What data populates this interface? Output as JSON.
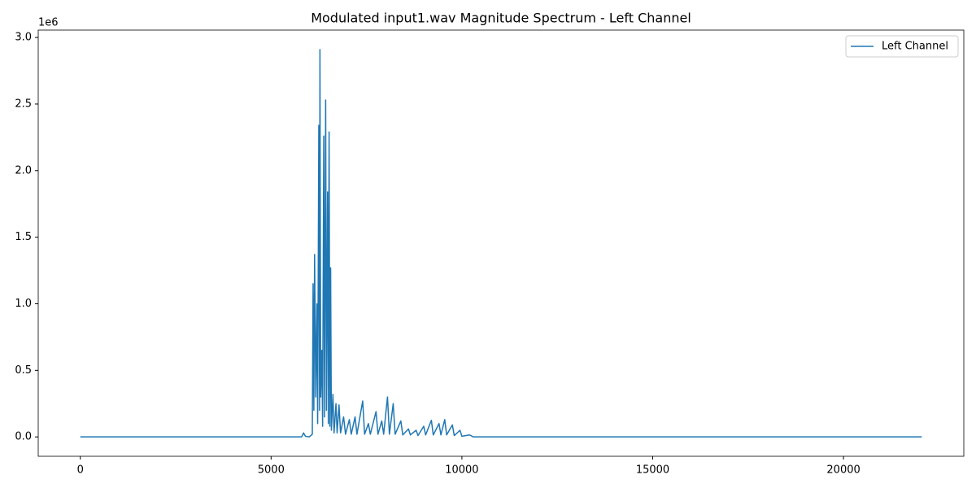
{
  "chart_data": {
    "type": "line",
    "title": "Modulated input1.wav Magnitude Spectrum - Left Channel",
    "y_offset_label": "1e6",
    "x": [
      0,
      5800,
      5850,
      5900,
      6000,
      6080,
      6100,
      6120,
      6140,
      6170,
      6200,
      6220,
      6250,
      6270,
      6280,
      6300,
      6330,
      6350,
      6380,
      6400,
      6430,
      6450,
      6480,
      6500,
      6520,
      6540,
      6560,
      6580,
      6620,
      6650,
      6700,
      6730,
      6780,
      6820,
      6900,
      6950,
      7050,
      7100,
      7200,
      7250,
      7400,
      7450,
      7550,
      7600,
      7750,
      7800,
      7900,
      7950,
      8050,
      8100,
      8200,
      8250,
      8400,
      8450,
      8600,
      8650,
      8800,
      8850,
      9000,
      9050,
      9200,
      9250,
      9400,
      9450,
      9550,
      9600,
      9750,
      9800,
      9950,
      10000,
      10200,
      10300,
      22050
    ],
    "series": [
      {
        "name": "Left Channel",
        "color": "#1f77b4",
        "values": [
          0,
          0,
          30000,
          5000,
          0,
          20000,
          1150000,
          200000,
          1370000,
          300000,
          1000000,
          100000,
          2340000,
          200000,
          2910000,
          300000,
          650000,
          80000,
          2260000,
          150000,
          2530000,
          200000,
          1840000,
          100000,
          2290000,
          80000,
          1270000,
          50000,
          320000,
          30000,
          250000,
          30000,
          240000,
          30000,
          150000,
          20000,
          130000,
          20000,
          150000,
          20000,
          270000,
          20000,
          100000,
          20000,
          190000,
          20000,
          120000,
          20000,
          300000,
          20000,
          250000,
          20000,
          120000,
          15000,
          60000,
          15000,
          50000,
          10000,
          80000,
          15000,
          125000,
          15000,
          100000,
          15000,
          130000,
          15000,
          90000,
          10000,
          50000,
          5000,
          15000,
          0,
          0
        ]
      }
    ],
    "xlim": [
      -1102.5,
      23152.5
    ],
    "ylim": [
      -145500,
      3055500
    ],
    "xticks": [
      0,
      5000,
      10000,
      15000,
      20000
    ],
    "yticks": [
      {
        "value": 0,
        "label": "0.0"
      },
      {
        "value": 500000,
        "label": "0.5"
      },
      {
        "value": 1000000,
        "label": "1.0"
      },
      {
        "value": 1500000,
        "label": "1.5"
      },
      {
        "value": 2000000,
        "label": "2.0"
      },
      {
        "value": 2500000,
        "label": "2.5"
      },
      {
        "value": 3000000,
        "label": "3.0"
      }
    ],
    "grid": false,
    "legend": "upper right"
  }
}
